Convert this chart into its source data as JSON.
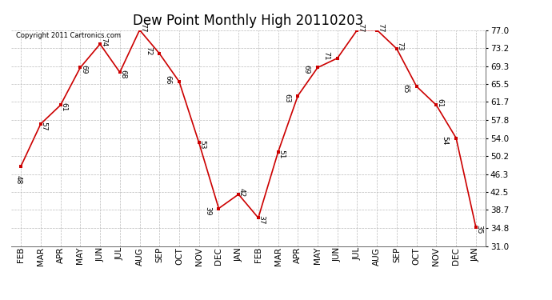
{
  "title": "Dew Point Monthly High 20110203",
  "copyright": "Copyright 2011 Cartronics.com",
  "months": [
    "FEB",
    "MAR",
    "APR",
    "MAY",
    "JUN",
    "JUL",
    "AUG",
    "SEP",
    "OCT",
    "NOV",
    "DEC",
    "JAN",
    "FEB",
    "MAR",
    "APR",
    "MAY",
    "JUN",
    "JUL",
    "AUG",
    "SEP",
    "OCT",
    "NOV",
    "DEC",
    "JAN"
  ],
  "values": [
    48,
    57,
    61,
    69,
    74,
    68,
    77,
    72,
    66,
    53,
    39,
    42,
    37,
    51,
    63,
    69,
    71,
    77,
    77,
    73,
    65,
    61,
    54,
    35
  ],
  "line_color": "#cc0000",
  "marker_color": "#cc0000",
  "bg_color": "#ffffff",
  "grid_color": "#bbbbbb",
  "yticks": [
    31.0,
    34.8,
    38.7,
    42.5,
    46.3,
    50.2,
    54.0,
    57.8,
    61.7,
    65.5,
    69.3,
    73.2,
    77.0
  ],
  "ylim": [
    31.0,
    77.0
  ],
  "title_fontsize": 12,
  "label_fontsize": 6.5,
  "copyright_fontsize": 6,
  "tick_fontsize": 7.5
}
